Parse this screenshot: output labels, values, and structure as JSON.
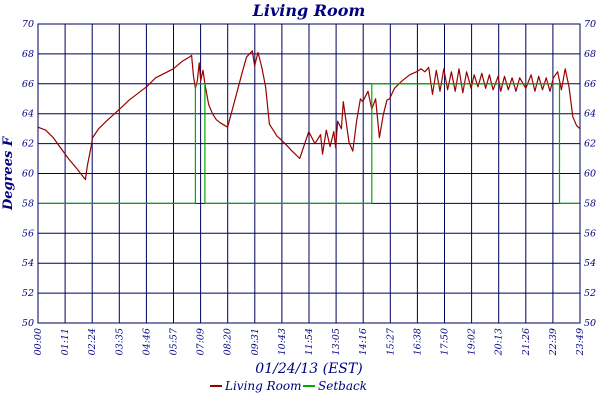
{
  "chart_data": {
    "type": "line",
    "title": "Living Room",
    "ylabel": "Degrees F",
    "xlabel": "01/24/13 (EST)",
    "ylim": [
      50,
      70
    ],
    "yticks": [
      50,
      52,
      54,
      56,
      58,
      60,
      62,
      64,
      66,
      68,
      70
    ],
    "xlim_minutes": [
      0,
      1429
    ],
    "xticks": [
      "00:00",
      "01:11",
      "02:24",
      "03:35",
      "04:46",
      "05:57",
      "07:09",
      "08:20",
      "09:31",
      "10:43",
      "11:54",
      "13:05",
      "14:16",
      "15:27",
      "16:38",
      "17:50",
      "19:02",
      "20:13",
      "21:26",
      "22:39",
      "23:49"
    ],
    "grid": true,
    "legend_position": "bottom",
    "colors": {
      "living_room": "#990000",
      "setback": "#00aa00",
      "grid": "#000060",
      "text": "#000080"
    },
    "series": [
      {
        "name": "Living Room",
        "x": [
          "00:00",
          "00:20",
          "00:40",
          "01:00",
          "01:20",
          "01:40",
          "02:05",
          "02:10",
          "02:20",
          "02:24",
          "02:40",
          "03:00",
          "03:35",
          "04:00",
          "04:46",
          "05:10",
          "05:57",
          "06:20",
          "06:40",
          "06:45",
          "06:50",
          "06:55",
          "07:00",
          "07:05",
          "07:09",
          "07:15",
          "07:20",
          "07:25",
          "07:30",
          "07:40",
          "07:50",
          "08:00",
          "08:20",
          "08:40",
          "09:00",
          "09:10",
          "09:25",
          "09:31",
          "09:40",
          "09:50",
          "10:00",
          "10:10",
          "10:20",
          "10:30",
          "10:43",
          "10:55",
          "11:10",
          "11:30",
          "11:54",
          "12:10",
          "12:25",
          "12:30",
          "12:40",
          "12:50",
          "13:00",
          "13:05",
          "13:10",
          "13:20",
          "13:25",
          "13:40",
          "13:50",
          "14:00",
          "14:10",
          "14:16",
          "14:30",
          "14:40",
          "14:50",
          "15:00",
          "15:10",
          "15:20",
          "15:27",
          "15:40",
          "16:00",
          "16:20",
          "16:38",
          "16:50",
          "17:00",
          "17:10",
          "17:20",
          "17:30",
          "17:40",
          "17:50",
          "18:00",
          "18:10",
          "18:20",
          "18:30",
          "18:40",
          "18:50",
          "19:02",
          "19:10",
          "19:20",
          "19:30",
          "19:40",
          "19:50",
          "20:00",
          "20:13",
          "20:20",
          "20:30",
          "20:40",
          "20:50",
          "21:00",
          "21:10",
          "21:26",
          "21:40",
          "21:50",
          "22:00",
          "22:10",
          "22:20",
          "22:30",
          "22:39",
          "22:50",
          "23:00",
          "23:10",
          "23:20",
          "23:30",
          "23:40",
          "23:49"
        ],
        "y": [
          63.1,
          62.9,
          62.4,
          61.7,
          61.0,
          60.4,
          59.6,
          60.5,
          61.8,
          62.4,
          63.0,
          63.5,
          64.3,
          64.9,
          65.8,
          66.4,
          67.0,
          67.5,
          67.8,
          67.9,
          66.5,
          65.7,
          66.2,
          67.4,
          66.2,
          66.9,
          66.0,
          65.3,
          64.6,
          64.0,
          63.6,
          63.4,
          63.1,
          65.0,
          66.9,
          67.8,
          68.2,
          67.2,
          68.1,
          67.1,
          65.8,
          63.3,
          62.9,
          62.5,
          62.2,
          61.9,
          61.5,
          61.0,
          62.8,
          62.0,
          62.6,
          61.3,
          62.9,
          61.8,
          62.8,
          61.7,
          63.5,
          63.0,
          64.8,
          62.1,
          61.5,
          63.5,
          65.0,
          64.8,
          65.5,
          64.3,
          65.0,
          62.4,
          63.9,
          64.9,
          65.0,
          65.7,
          66.2,
          66.6,
          66.8,
          67.0,
          66.8,
          67.1,
          65.3,
          66.9,
          65.5,
          67.0,
          65.6,
          66.8,
          65.5,
          67.0,
          65.4,
          66.8,
          65.7,
          66.6,
          65.8,
          66.7,
          65.7,
          66.6,
          65.6,
          66.5,
          65.5,
          66.5,
          65.6,
          66.4,
          65.5,
          66.4,
          65.7,
          66.6,
          65.5,
          66.5,
          65.6,
          66.4,
          65.5,
          66.4,
          66.8,
          65.6,
          67.0,
          65.8,
          63.8,
          63.2,
          63.0
        ]
      },
      {
        "name": "Setback",
        "x": [
          "00:00",
          "06:55",
          "06:55",
          "07:20",
          "07:20",
          "14:40",
          "14:40",
          "22:55",
          "22:55",
          "23:49"
        ],
        "y": [
          58,
          58,
          66,
          66,
          58,
          58,
          66,
          66,
          58,
          58
        ]
      }
    ]
  }
}
